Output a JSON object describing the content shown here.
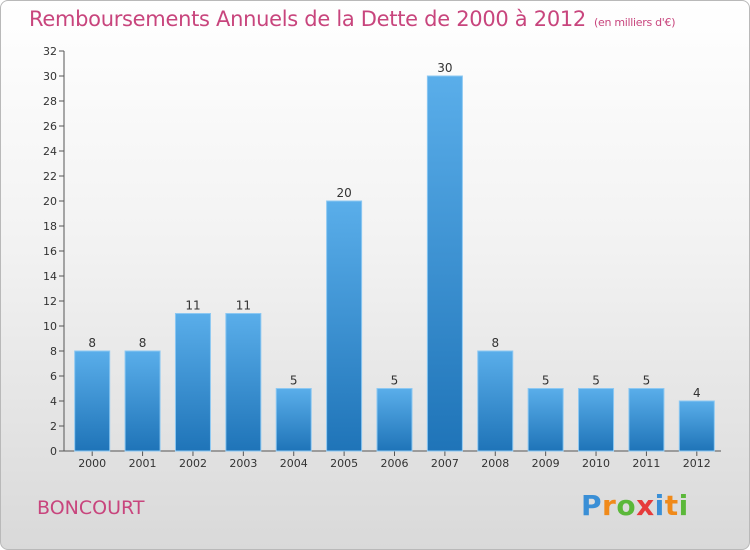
{
  "header": {
    "title": "Remboursements Annuels de la Dette de 2000 à 2012",
    "unit": "(en milliers d'€)"
  },
  "footer": {
    "commune": "BONCOURT",
    "logo": [
      "P",
      "r",
      "o",
      "x",
      "i",
      "t",
      "i"
    ]
  },
  "colors": {
    "title": "#c8457d",
    "bar_top": "#5aaeea",
    "bar_bottom": "#1f74b8"
  },
  "chart_data": {
    "type": "bar",
    "title": "Remboursements Annuels de la Dette de 2000 à 2012",
    "subtitle": "(en milliers d'€)",
    "xlabel": "",
    "ylabel": "",
    "categories": [
      "2000",
      "2001",
      "2002",
      "2003",
      "2004",
      "2005",
      "2006",
      "2007",
      "2008",
      "2009",
      "2010",
      "2011",
      "2012"
    ],
    "values": [
      8,
      8,
      11,
      11,
      5,
      20,
      5,
      30,
      8,
      5,
      5,
      5,
      4
    ],
    "ylim": [
      0,
      32
    ],
    "yticks": [
      0,
      2,
      4,
      6,
      8,
      10,
      12,
      14,
      16,
      18,
      20,
      22,
      24,
      26,
      28,
      30,
      32
    ],
    "grid": false,
    "data_labels": true
  }
}
